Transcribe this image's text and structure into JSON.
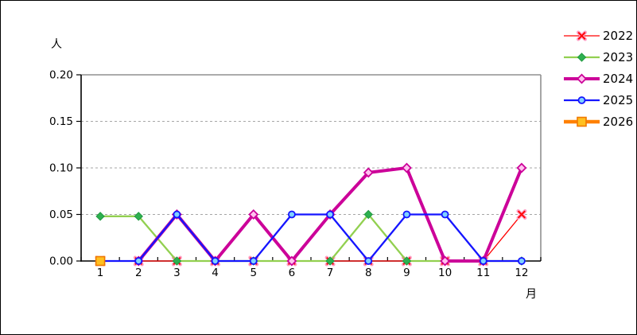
{
  "frame": {
    "background": "#FFFFFF",
    "outer_border_color": "#000000",
    "axis_color": "#000000",
    "plot_border_color": "#909090",
    "gridline_color": "#A6A6A6"
  },
  "chart_data": {
    "type": "line",
    "title": "",
    "y_unit_label": "人",
    "x_unit_label": "月",
    "categories": [
      "1",
      "2",
      "3",
      "4",
      "5",
      "6",
      "7",
      "8",
      "9",
      "10",
      "11",
      "12"
    ],
    "ylim": [
      0,
      0.2
    ],
    "y_ticks": [
      {
        "label": "0.00",
        "value": 0.0
      },
      {
        "label": "0.05",
        "value": 0.05
      },
      {
        "label": "0.10",
        "value": 0.1
      },
      {
        "label": "0.15",
        "value": 0.15
      },
      {
        "label": "0.20",
        "value": 0.2
      }
    ],
    "grid": "horizontal-dashed",
    "legend_position": "right",
    "series": [
      {
        "name": "2022",
        "color": "#FF0000",
        "halo_color": "#FF9EC4",
        "line_width": 1.3,
        "marker": "x-marker",
        "marker_fill": "#FF0000",
        "values": [
          0,
          0,
          0,
          0,
          0,
          0,
          0,
          0,
          0,
          0,
          0,
          0.05
        ]
      },
      {
        "name": "2023",
        "color": "#92D050",
        "line_width": 2.3,
        "marker": "filled-diamond",
        "marker_fill": "#2EB050",
        "marker_stroke": "#1F9A40",
        "values": [
          0.048,
          0.048,
          0,
          0,
          0,
          0,
          0,
          0.05,
          0,
          0,
          0,
          0
        ]
      },
      {
        "name": "2024",
        "color": "#CC0099",
        "line_width": 4,
        "marker": "open-diamond",
        "marker_fill": "#FFC2EE",
        "marker_stroke": "#CC0099",
        "values": [
          null,
          0,
          0.05,
          0,
          0.05,
          0,
          0.05,
          0.095,
          0.1,
          0,
          0,
          0.1
        ]
      },
      {
        "name": "2025",
        "color": "#1515FF",
        "line_width": 2.3,
        "marker": "open-circle",
        "marker_fill": "#7ED2FF",
        "marker_stroke": "#1515FF",
        "values": [
          0,
          0,
          0.05,
          0,
          0,
          0.05,
          0.05,
          0,
          0.05,
          0.05,
          0,
          0
        ]
      },
      {
        "name": "2026",
        "color": "#FF8000",
        "line_width": 4.5,
        "marker": "filled-square",
        "marker_fill": "#FFC020",
        "marker_stroke": "#F07800",
        "values": [
          0,
          null,
          null,
          null,
          null,
          null,
          null,
          null,
          null,
          null,
          null,
          null
        ]
      }
    ]
  }
}
